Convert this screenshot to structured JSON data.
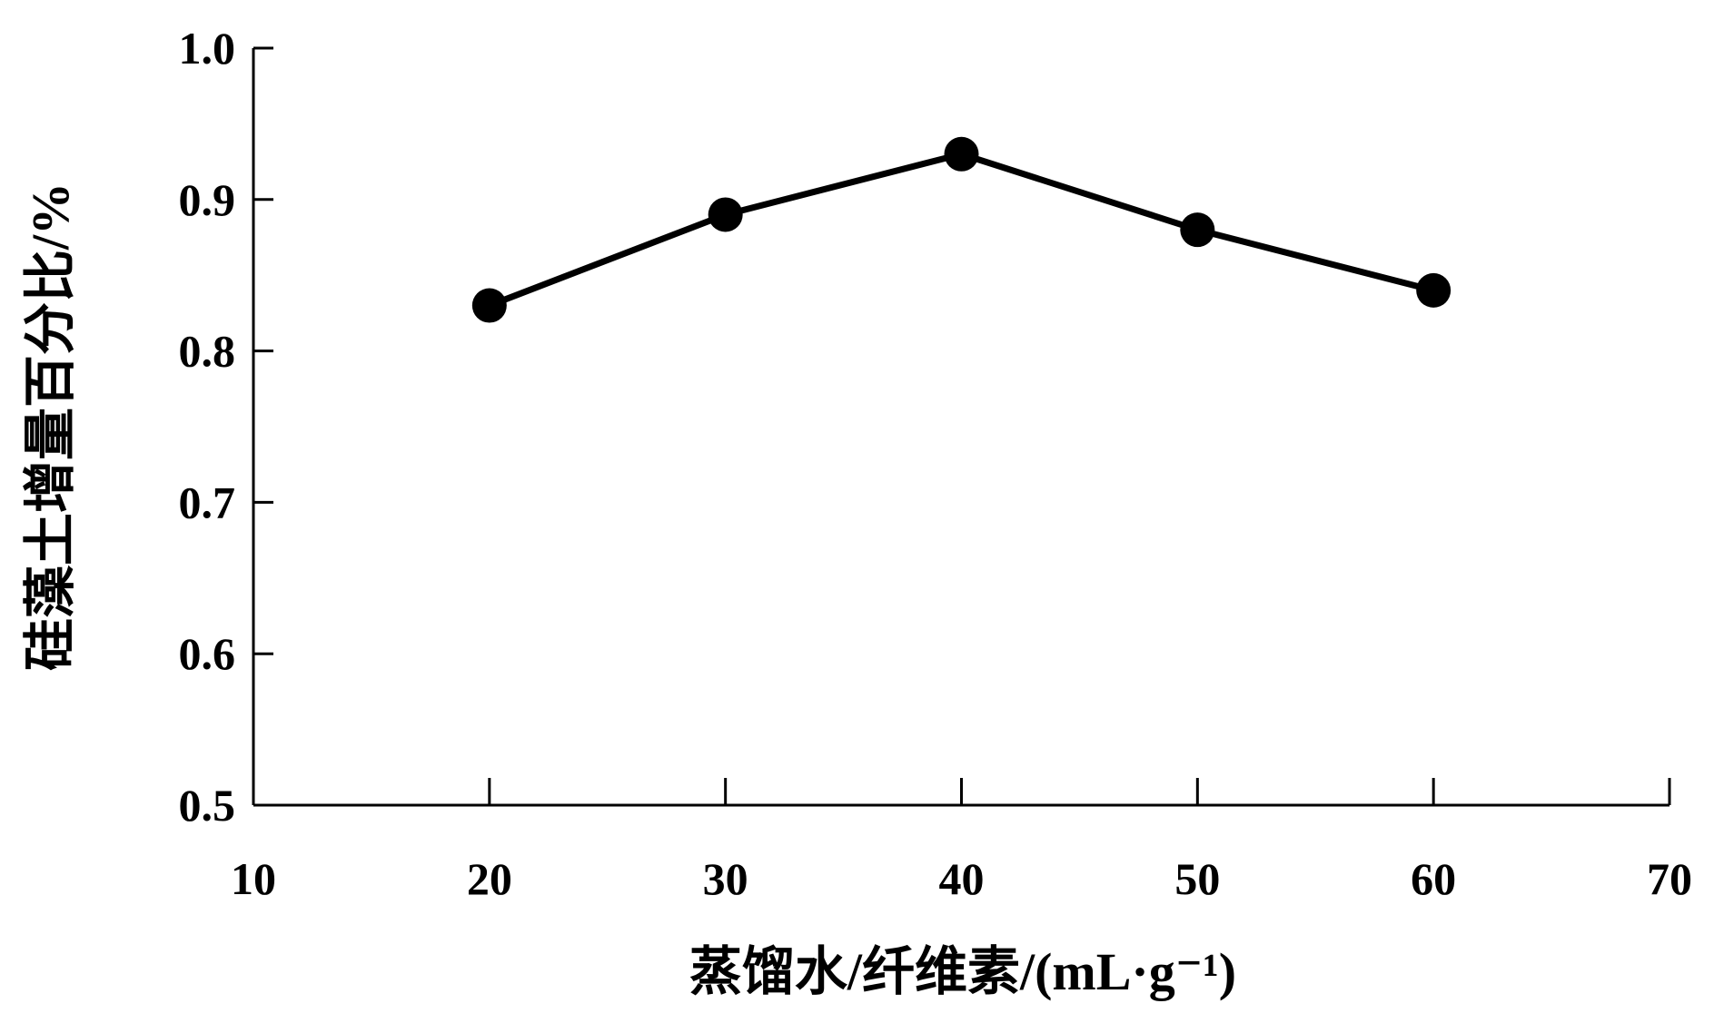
{
  "chart_data": {
    "type": "line",
    "title": "",
    "xlabel": "蒸馏水/纤维素/(mL·g⁻¹)",
    "ylabel": "硅藻土增量百分比/%",
    "xlim": [
      10,
      70
    ],
    "ylim": [
      0.5,
      1.0
    ],
    "xticks": [
      "10",
      "20",
      "30",
      "40",
      "50",
      "60",
      "70"
    ],
    "yticks": [
      "0.5",
      "0.6",
      "0.7",
      "0.8",
      "0.9",
      "1.0"
    ],
    "grid": false,
    "series": [
      {
        "x": [
          20,
          30,
          40,
          50,
          60
        ],
        "values": [
          0.83,
          0.89,
          0.93,
          0.88,
          0.84
        ],
        "color": "#000000",
        "marker": "circle"
      }
    ]
  }
}
